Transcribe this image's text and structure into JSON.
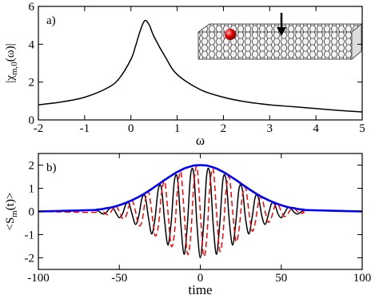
{
  "chart_data": [
    {
      "type": "line",
      "panel_label": "a)",
      "xlabel": "ω",
      "ylabel": {
        "pre": "|χ",
        "sub": "m,0",
        "post": "(ω)|"
      },
      "x": [
        -2,
        -1.5,
        -1,
        -0.5,
        -0.25,
        0,
        0.1,
        0.2,
        0.3,
        0.4,
        0.5,
        0.75,
        1,
        1.5,
        2,
        2.5,
        3,
        3.5,
        4,
        4.5,
        5
      ],
      "series": [
        {
          "color": "#000000",
          "linestyle": "solid",
          "values": [
            0.8,
            0.95,
            1.2,
            1.7,
            2.2,
            3.2,
            3.9,
            4.7,
            5.25,
            5.0,
            4.4,
            3.3,
            2.4,
            1.6,
            1.2,
            0.95,
            0.8,
            0.7,
            0.6,
            0.5,
            0.42
          ]
        }
      ],
      "xlim": [
        -2,
        5
      ],
      "ylim": [
        0,
        6
      ],
      "xticks": [
        -2,
        -1,
        0,
        1,
        2,
        3,
        4,
        5
      ],
      "yticks": [
        0,
        2,
        4,
        6
      ]
    },
    {
      "type": "line",
      "panel_label": "b)",
      "xlabel": "time",
      "ylabel": {
        "pre": "<S",
        "sub": "m",
        "post": "(t)>"
      },
      "x": [
        -100,
        -66,
        -64,
        -62,
        -60,
        -58,
        -56,
        -54,
        -52,
        -50,
        -48,
        -46,
        -44,
        -42,
        -40,
        -38,
        -36,
        -34,
        -32,
        -30,
        -28,
        -26,
        -24,
        -22,
        -20,
        -18,
        -16,
        -14,
        -12,
        -10,
        -8,
        -6,
        -4,
        -2,
        0,
        2,
        4,
        6,
        8,
        10,
        12,
        14,
        16,
        18,
        20,
        22,
        24,
        26,
        28,
        30,
        32,
        34,
        36,
        38,
        40,
        42,
        44,
        46,
        48,
        50,
        52,
        54,
        56,
        58,
        60,
        62,
        64,
        66,
        100
      ],
      "series": [
        {
          "color": "#000000",
          "linestyle": "solid",
          "values": [
            0,
            0.05,
            0.06,
            -0.03,
            -0.11,
            -0.04,
            0.13,
            0.16,
            -0.07,
            -0.27,
            -0.1,
            0.3,
            0.34,
            -0.15,
            -0.56,
            -0.19,
            0.57,
            0.64,
            -0.27,
            -0.97,
            -0.33,
            0.94,
            1.02,
            -0.42,
            -1.45,
            -0.48,
            1.32,
            1.38,
            -0.55,
            -1.85,
            -0.59,
            1.57,
            1.6,
            -0.62,
            -2.0,
            -0.62,
            1.6,
            1.57,
            -0.59,
            -1.85,
            -0.55,
            1.38,
            1.32,
            -0.48,
            -1.45,
            -0.42,
            1.02,
            0.94,
            -0.33,
            -0.97,
            -0.27,
            0.64,
            0.57,
            -0.19,
            -0.56,
            -0.15,
            0.34,
            0.3,
            -0.1,
            -0.27,
            -0.07,
            0.16,
            0.13,
            -0.04,
            -0.11,
            -0.03,
            0.06,
            0.05,
            0
          ]
        },
        {
          "color": "#ff0000",
          "linestyle": "dashed",
          "values": [
            0,
            -0.04,
            0.04,
            0.09,
            0,
            -0.13,
            -0.1,
            0.11,
            0.22,
            0,
            -0.3,
            -0.22,
            0.25,
            0.46,
            0,
            -0.6,
            -0.42,
            0.47,
            0.84,
            0,
            -1.02,
            -0.68,
            0.74,
            1.29,
            0,
            -1.47,
            -0.96,
            1.0,
            1.69,
            0,
            -1.81,
            -1.14,
            1.16,
            1.9,
            0,
            -1.9,
            -1.16,
            1.14,
            1.81,
            0,
            -1.69,
            -1.0,
            0.96,
            1.47,
            0,
            -1.29,
            -0.74,
            0.68,
            1.02,
            0,
            -0.84,
            -0.47,
            0.42,
            0.6,
            0,
            -0.46,
            -0.25,
            0.22,
            0.3,
            0,
            -0.22,
            -0.11,
            0.1,
            0.13,
            0,
            -0.09,
            -0.04,
            0.04,
            0
          ]
        },
        {
          "color": "#0000ff",
          "linestyle": "solid",
          "values": [
            0,
            0.06,
            0.08,
            0.09,
            0.11,
            0.14,
            0.16,
            0.19,
            0.23,
            0.27,
            0.32,
            0.37,
            0.43,
            0.49,
            0.56,
            0.63,
            0.71,
            0.79,
            0.88,
            0.97,
            1.07,
            1.16,
            1.26,
            1.36,
            1.45,
            1.54,
            1.63,
            1.71,
            1.78,
            1.85,
            1.9,
            1.94,
            1.98,
            1.99,
            2.0,
            1.99,
            1.98,
            1.94,
            1.9,
            1.85,
            1.78,
            1.71,
            1.63,
            1.54,
            1.45,
            1.36,
            1.26,
            1.16,
            1.07,
            0.97,
            0.88,
            0.79,
            0.71,
            0.63,
            0.56,
            0.49,
            0.43,
            0.37,
            0.32,
            0.27,
            0.23,
            0.19,
            0.16,
            0.14,
            0.11,
            0.09,
            0.08,
            0.06,
            0
          ]
        }
      ],
      "xlim": [
        -100,
        100
      ],
      "ylim": [
        -2.5,
        2.5
      ],
      "xticks": [
        -100,
        -50,
        0,
        50,
        100
      ],
      "yticks": [
        -2,
        -1,
        0,
        1,
        2
      ]
    }
  ]
}
